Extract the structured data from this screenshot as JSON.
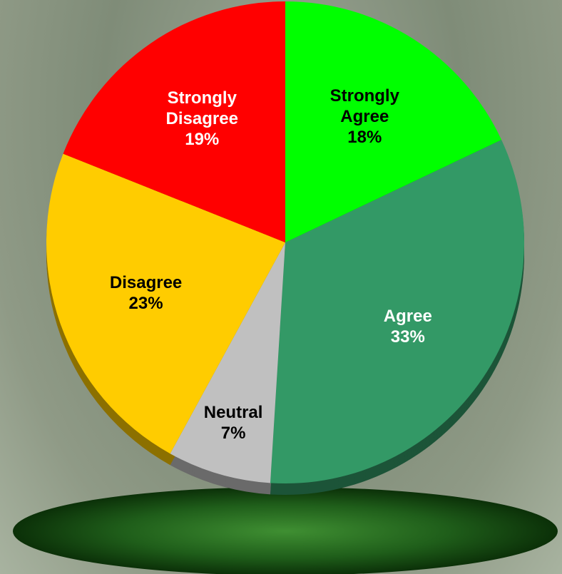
{
  "chart_data": {
    "type": "pie",
    "categories": [
      "Strongly Agree",
      "Agree",
      "Neutral",
      "Disagree",
      "Strongly Disagree"
    ],
    "values": [
      18,
      33,
      7,
      23,
      19
    ],
    "value_labels": [
      "18%",
      "33%",
      "7%",
      "23%",
      "19%"
    ],
    "colors": [
      "#00ff00",
      "#339966",
      "#c0c0c0",
      "#ffcc00",
      "#ff0000"
    ],
    "label_colors": [
      "#000000",
      "#ffffff",
      "#000000",
      "#000000",
      "#ffffff"
    ]
  }
}
